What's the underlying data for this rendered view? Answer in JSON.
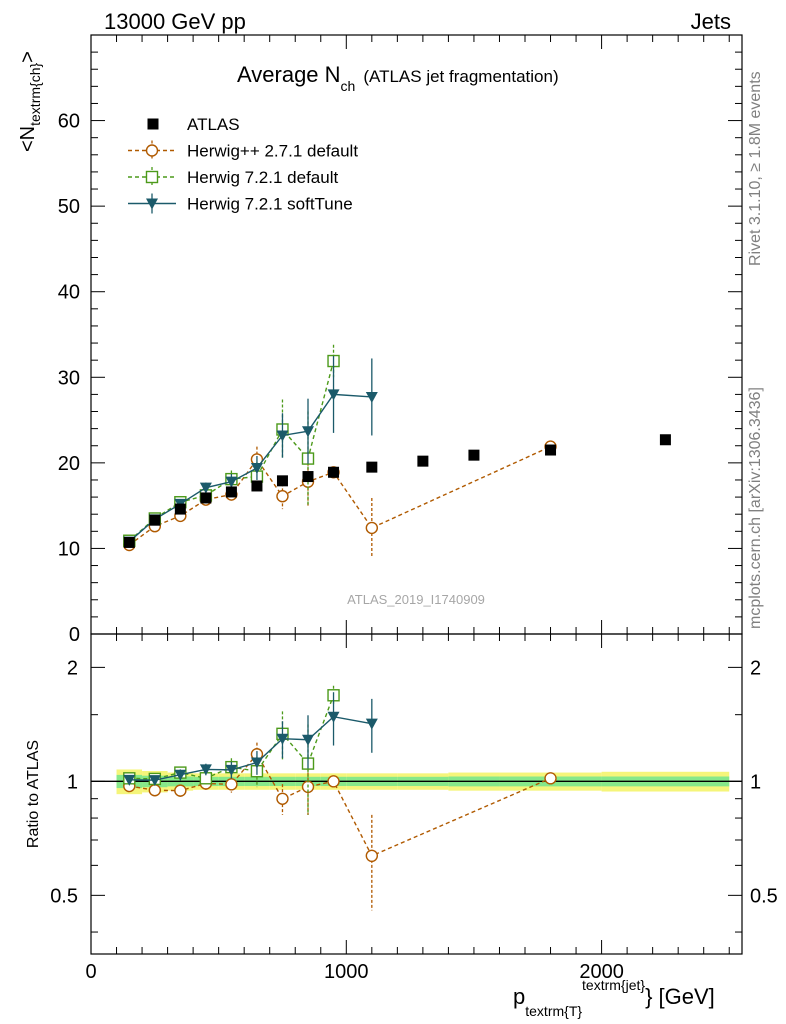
{
  "header": {
    "left": "13000 GeV pp",
    "right": "Jets"
  },
  "side_text": {
    "rivet": "Rivet 3.1.10, ≥ 1.8M events",
    "mcplots": "mcplots.cern.ch [arXiv:1306.3436]"
  },
  "chart_data": {
    "type": "scatter",
    "title": "Average N",
    "title_sub": "ch",
    "title_note": "(ATLAS jet fragmentation)",
    "watermark": "ATLAS_2019_I1740909",
    "ylabel_main": "<N",
    "ylabel_main_sub": "textrm{ch}",
    "ylabel_main_end": ">",
    "ylabel_ratio": "Ratio to ATLAS",
    "xlabel": "p",
    "xlabel_sub": "textrm{T}",
    "xlabel_sup": "textrm{jet}",
    "xlabel_end": "} [GeV]",
    "xlim": [
      0,
      2550
    ],
    "ylim_main": [
      0,
      70
    ],
    "ylim_ratio_log": [
      0.35,
      2.45
    ],
    "x_ticks": [
      0,
      1000,
      2000
    ],
    "x_tick_labels": [
      "0",
      "1000",
      "2000"
    ],
    "y_ticks_main": [
      0,
      10,
      20,
      30,
      40,
      50,
      60
    ],
    "y_tick_labels_main": [
      "0",
      "10",
      "20",
      "30",
      "40",
      "50",
      "60"
    ],
    "y_ticks_ratio": [
      0.5,
      1,
      2
    ],
    "y_tick_labels_ratio": [
      "0.5",
      "1",
      "2"
    ],
    "legend": [
      {
        "name": "ATLAS",
        "color": "#000000",
        "marker": "square-filled",
        "dash": false
      },
      {
        "name": "Herwig++ 2.7.1 default",
        "color": "#b05a00",
        "marker": "circle-open",
        "dash": true
      },
      {
        "name": "Herwig 7.2.1 default",
        "color": "#4c9a1a",
        "marker": "square-open",
        "dash": true
      },
      {
        "name": "Herwig 7.2.1 softTune",
        "color": "#1b5a6a",
        "marker": "triangle-down-filled",
        "dash": false
      }
    ],
    "data": {
      "x": [
        150,
        250,
        350,
        450,
        550,
        650,
        750,
        850,
        950,
        1100,
        1300,
        1500,
        1800,
        2250
      ],
      "y": [
        10.7,
        13.3,
        14.6,
        15.9,
        16.6,
        17.3,
        17.9,
        18.4,
        18.9,
        19.5,
        20.2,
        20.9,
        21.5,
        22.7
      ],
      "band_x": [
        [
          100,
          200
        ],
        [
          200,
          300
        ],
        [
          300,
          400
        ],
        [
          400,
          500
        ],
        [
          500,
          600
        ],
        [
          600,
          700
        ],
        [
          700,
          800
        ],
        [
          800,
          900
        ],
        [
          900,
          1000
        ],
        [
          1000,
          1200
        ],
        [
          1200,
          1400
        ],
        [
          1400,
          1600
        ],
        [
          1600,
          2000
        ],
        [
          2000,
          2500
        ]
      ],
      "band_inner": [
        0.04,
        0.035,
        0.03,
        0.028,
        0.028,
        0.028,
        0.028,
        0.028,
        0.028,
        0.028,
        0.028,
        0.03,
        0.03,
        0.03
      ],
      "band_outer": [
        0.075,
        0.065,
        0.055,
        0.05,
        0.05,
        0.05,
        0.05,
        0.05,
        0.05,
        0.05,
        0.05,
        0.055,
        0.055,
        0.06
      ]
    },
    "series": [
      {
        "name": "Herwig++ 2.7.1 default",
        "x": [
          150,
          250,
          350,
          450,
          550,
          650,
          750,
          850,
          950,
          1100,
          1800
        ],
        "y": [
          10.4,
          12.6,
          13.8,
          15.7,
          16.3,
          20.4,
          16.1,
          17.8,
          18.9,
          12.4,
          21.9
        ],
        "err": [
          0.4,
          0.4,
          0.5,
          0.6,
          0.8,
          1.5,
          1.5,
          2.8,
          0.4,
          3.5,
          0.5
        ]
      },
      {
        "name": "Herwig 7.2.1 default",
        "x": [
          150,
          250,
          350,
          450,
          550,
          650,
          750,
          850,
          950
        ],
        "y": [
          10.9,
          13.5,
          15.4,
          16.2,
          18.1,
          18.4,
          23.9,
          20.5,
          31.9
        ],
        "err": [
          0.3,
          0.4,
          0.5,
          0.7,
          1.0,
          1.7,
          3.5,
          5.5,
          1.9
        ]
      },
      {
        "name": "Herwig 7.2.1 softTune",
        "x": [
          150,
          250,
          350,
          450,
          550,
          650,
          750,
          850,
          950,
          1100
        ],
        "y": [
          10.8,
          13.4,
          15.2,
          17.1,
          17.8,
          19.4,
          23.2,
          23.7,
          28.0,
          27.7
        ],
        "err": [
          0.3,
          0.4,
          0.5,
          0.6,
          0.9,
          1.4,
          2.6,
          3.8,
          4.5,
          4.5
        ]
      }
    ]
  }
}
